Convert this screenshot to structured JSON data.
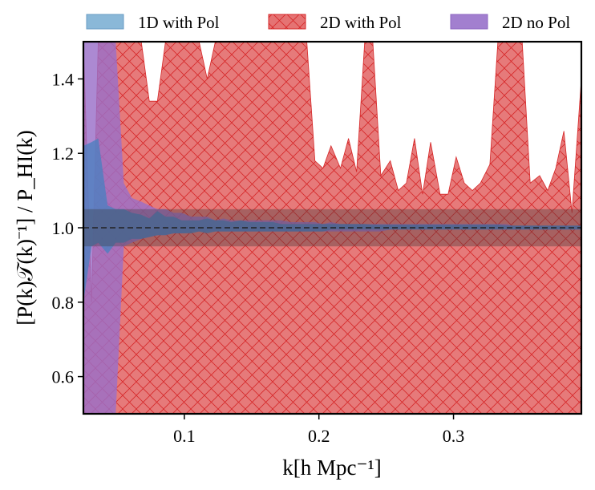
{
  "chart_data": {
    "type": "area",
    "title": "",
    "xlabel": "k[h Mpc⁻¹]",
    "ylabel": "[P(k)𝒯(k)⁻¹] / P_HI(k)",
    "xlim": [
      0.025,
      0.395
    ],
    "ylim": [
      0.5,
      1.5
    ],
    "x_ticks": [
      0.1,
      0.2,
      0.3
    ],
    "x_tick_labels": [
      "0.1",
      "0.2",
      "0.3"
    ],
    "y_ticks": [
      0.6,
      0.8,
      1.0,
      1.2,
      1.4
    ],
    "y_tick_labels": [
      "0.6",
      "0.8",
      "1.0",
      "1.2",
      "1.4"
    ],
    "legend": {
      "placement": "top (outside, above axes)",
      "entries": [
        "1D with Pol",
        "2D with Pol",
        "2D no Pol"
      ]
    },
    "reference_band": {
      "low": 0.95,
      "high": 1.05,
      "center": 1.0,
      "color": "#555555"
    },
    "series": [
      {
        "name": "2D with Pol",
        "color": "#d62728",
        "fill": "#e57373",
        "hatch": "x",
        "x": [
          0.025,
          0.031,
          0.036,
          0.043,
          0.049,
          0.055,
          0.061,
          0.068,
          0.074,
          0.08,
          0.086,
          0.092,
          0.098,
          0.105,
          0.111,
          0.117,
          0.123,
          0.129,
          0.135,
          0.142,
          0.148,
          0.154,
          0.16,
          0.166,
          0.172,
          0.179,
          0.185,
          0.191,
          0.197,
          0.203,
          0.209,
          0.216,
          0.222,
          0.228,
          0.234,
          0.24,
          0.246,
          0.253,
          0.259,
          0.265,
          0.271,
          0.277,
          0.283,
          0.29,
          0.296,
          0.302,
          0.308,
          0.314,
          0.32,
          0.327,
          0.333,
          0.339,
          0.345,
          0.351,
          0.357,
          0.364,
          0.37,
          0.376,
          0.382,
          0.388,
          0.395
        ],
        "upper": [
          1.5,
          0.8,
          1.5,
          1.5,
          1.5,
          1.5,
          1.5,
          1.5,
          1.34,
          1.34,
          1.5,
          1.5,
          1.5,
          1.5,
          1.5,
          1.4,
          1.5,
          1.5,
          1.5,
          1.5,
          1.5,
          1.5,
          1.5,
          1.5,
          1.5,
          1.5,
          1.5,
          1.5,
          1.18,
          1.16,
          1.22,
          1.16,
          1.24,
          1.15,
          1.5,
          1.5,
          1.14,
          1.18,
          1.1,
          1.12,
          1.24,
          1.09,
          1.23,
          1.09,
          1.09,
          1.19,
          1.12,
          1.1,
          1.12,
          1.17,
          1.5,
          1.5,
          1.5,
          1.5,
          1.12,
          1.14,
          1.1,
          1.16,
          1.26,
          1.04,
          1.4
        ],
        "lower": [
          0.5,
          0.5,
          0.5,
          0.5,
          0.5,
          0.5,
          0.5,
          0.5,
          0.5,
          0.5,
          0.5,
          0.5,
          0.5,
          0.5,
          0.5,
          0.5,
          0.5,
          0.5,
          0.5,
          0.5,
          0.5,
          0.5,
          0.5,
          0.5,
          0.5,
          0.5,
          0.5,
          0.5,
          0.5,
          0.5,
          0.5,
          0.5,
          0.5,
          0.5,
          0.5,
          0.5,
          0.5,
          0.5,
          0.5,
          0.5,
          0.5,
          0.5,
          0.5,
          0.5,
          0.5,
          0.5,
          0.5,
          0.5,
          0.5,
          0.5,
          0.5,
          0.5,
          0.5,
          0.5,
          0.5,
          0.5,
          0.5,
          0.5,
          0.5,
          0.5,
          0.5
        ]
      },
      {
        "name": "2D no Pol",
        "color": "#9467bd",
        "fill": "#9a6fc8",
        "hatch": "",
        "x": [
          0.025,
          0.031,
          0.036,
          0.043,
          0.049,
          0.055,
          0.061,
          0.068,
          0.074,
          0.08,
          0.086,
          0.092,
          0.098,
          0.105,
          0.111,
          0.117,
          0.123,
          0.129,
          0.135,
          0.142,
          0.148,
          0.154,
          0.16,
          0.166,
          0.172,
          0.179,
          0.185,
          0.191,
          0.197,
          0.203,
          0.209,
          0.216,
          0.222,
          0.228,
          0.234,
          0.24,
          0.246,
          0.253,
          0.259,
          0.265,
          0.271,
          0.277,
          0.283,
          0.29,
          0.296,
          0.302,
          0.308,
          0.314,
          0.32,
          0.327,
          0.333,
          0.339,
          0.345,
          0.351,
          0.357,
          0.364,
          0.37,
          0.376,
          0.382,
          0.388,
          0.395
        ],
        "upper": [
          1.5,
          1.5,
          1.5,
          1.5,
          1.5,
          1.12,
          1.08,
          1.07,
          1.06,
          1.05,
          1.05,
          1.04,
          1.04,
          1.03,
          1.03,
          1.03,
          1.02,
          1.025,
          1.02,
          1.02,
          1.02,
          1.02,
          1.02,
          1.02,
          1.02,
          1.015,
          1.015,
          1.015,
          1.015,
          1.01,
          1.015,
          1.01,
          1.01,
          1.01,
          1.01,
          1.01,
          1.01,
          1.01,
          1.01,
          1.01,
          1.01,
          1.01,
          1.01,
          1.01,
          1.01,
          1.01,
          1.01,
          1.01,
          1.01,
          1.01,
          1.01,
          1.01,
          1.005,
          1.005,
          1.005,
          1.005,
          1.005,
          1.005,
          1.005,
          1.005,
          1.005
        ],
        "lower": [
          0.5,
          0.5,
          0.5,
          0.5,
          0.5,
          0.95,
          0.96,
          0.97,
          0.975,
          0.98,
          0.98,
          0.985,
          0.985,
          0.99,
          0.99,
          0.99,
          0.99,
          0.99,
          0.99,
          0.99,
          0.99,
          0.99,
          0.99,
          0.99,
          0.99,
          0.99,
          0.99,
          0.99,
          0.99,
          0.99,
          0.99,
          0.99,
          0.99,
          0.99,
          0.99,
          0.99,
          0.99,
          0.995,
          0.995,
          0.995,
          0.995,
          0.995,
          0.995,
          0.995,
          0.995,
          0.995,
          0.995,
          0.995,
          0.995,
          0.995,
          0.995,
          0.995,
          0.995,
          0.995,
          0.995,
          0.995,
          0.995,
          0.995,
          0.995,
          0.995,
          0.995
        ]
      },
      {
        "name": "1D with Pol",
        "color": "#1f77b4",
        "fill": "#4f7fc0",
        "hatch": "",
        "x": [
          0.025,
          0.031,
          0.036,
          0.043,
          0.049,
          0.055,
          0.061,
          0.068,
          0.074,
          0.08,
          0.086,
          0.092,
          0.098,
          0.105,
          0.111,
          0.117,
          0.123,
          0.129,
          0.135,
          0.142,
          0.148,
          0.154,
          0.16,
          0.166,
          0.172,
          0.179,
          0.185,
          0.191,
          0.197,
          0.203,
          0.209,
          0.216,
          0.222,
          0.228,
          0.234,
          0.24,
          0.246,
          0.253,
          0.259,
          0.265,
          0.271,
          0.277,
          0.283,
          0.29,
          0.296,
          0.302,
          0.308,
          0.314,
          0.32,
          0.327,
          0.333,
          0.339,
          0.345,
          0.351,
          0.357,
          0.364,
          0.37,
          0.376,
          0.382,
          0.388,
          0.395
        ],
        "upper": [
          1.22,
          1.23,
          1.24,
          1.06,
          1.05,
          1.05,
          1.04,
          1.035,
          1.025,
          1.045,
          1.03,
          1.03,
          1.02,
          1.02,
          1.02,
          1.025,
          1.02,
          1.02,
          1.015,
          1.02,
          1.015,
          1.015,
          1.015,
          1.015,
          1.01,
          1.01,
          1.01,
          1.01,
          1.01,
          1.01,
          1.01,
          1.01,
          1.01,
          1.01,
          1.01,
          1.008,
          1.008,
          1.008,
          1.008,
          1.008,
          1.008,
          1.008,
          1.008,
          1.008,
          1.008,
          1.008,
          1.008,
          1.008,
          1.008,
          1.008,
          1.008,
          1.006,
          1.006,
          1.006,
          1.006,
          1.006,
          1.006,
          1.006,
          1.006,
          1.006,
          1.006
        ],
        "lower": [
          0.8,
          0.95,
          0.96,
          0.93,
          0.96,
          0.96,
          0.97,
          0.97,
          0.975,
          0.98,
          0.98,
          0.985,
          0.985,
          0.985,
          0.99,
          0.985,
          0.99,
          0.99,
          0.99,
          0.99,
          0.99,
          0.99,
          0.99,
          0.99,
          0.99,
          0.99,
          0.99,
          0.99,
          0.99,
          0.99,
          0.995,
          0.995,
          0.995,
          0.995,
          0.995,
          0.995,
          0.995,
          0.995,
          0.995,
          0.995,
          0.995,
          0.995,
          0.995,
          0.995,
          0.995,
          0.995,
          0.995,
          0.995,
          0.995,
          0.995,
          0.995,
          0.995,
          0.995,
          0.995,
          0.995,
          0.995,
          0.995,
          0.995,
          0.995,
          0.995,
          0.995
        ]
      }
    ]
  }
}
